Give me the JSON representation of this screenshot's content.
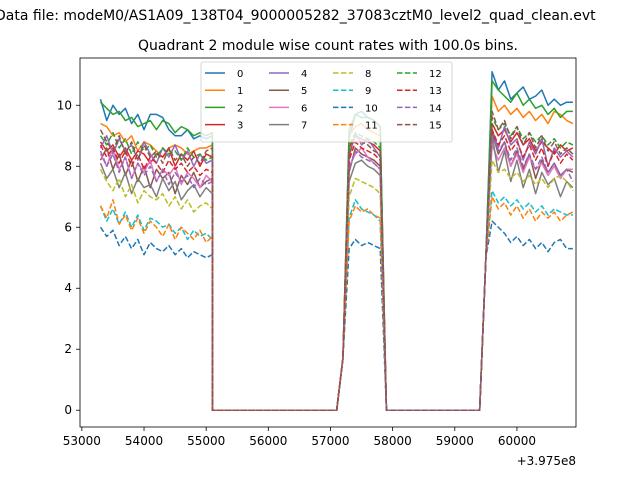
{
  "figure": {
    "suptitle": "Data file: modeM0/AS1A09_138T04_9000005282_37083cztM0_level2_quad_clean.evt"
  },
  "chart_data": {
    "type": "line",
    "title": "Quadrant 2 module wise count rates with 100.0s bins.",
    "xlabel": "",
    "ylabel": "",
    "x_offset_label": "+3.975e8",
    "xlim": [
      52970,
      60950
    ],
    "ylim": [
      -0.55,
      11.55
    ],
    "x_ticks": [
      53000,
      54000,
      55000,
      56000,
      57000,
      58000,
      59000,
      60000
    ],
    "y_ticks": [
      0,
      2,
      4,
      6,
      8,
      10
    ],
    "grid": false,
    "legend": {
      "placement": "top-center",
      "columns": 4
    },
    "series": [
      {
        "name": "0",
        "color": "#1f77b4",
        "dash": "solid",
        "start": [
          10.2,
          9.5,
          10.0,
          9.7,
          9.9,
          9.4,
          9.7,
          9.2,
          9.7,
          9.7,
          9.6,
          9.2,
          9.0,
          9.0,
          9.2,
          8.9,
          9.0,
          8.9,
          9.0
        ],
        "mid": [
          8.9,
          9.7,
          9.8,
          9.6,
          9.5,
          9.3
        ],
        "end": [
          11.1,
          10.5,
          10.8,
          10.2,
          10.4,
          10.6,
          10.2,
          10.3,
          10.5,
          10.0,
          10.2,
          10.0,
          10.1,
          10.1
        ]
      },
      {
        "name": "1",
        "color": "#ff7f0e",
        "dash": "solid",
        "start": [
          9.4,
          9.3,
          9.0,
          9.1,
          8.8,
          9.0,
          8.5,
          8.8,
          8.7,
          8.5,
          8.3,
          8.6,
          8.7,
          8.6,
          8.4,
          8.5,
          8.6,
          8.6,
          8.7
        ],
        "mid": [
          9.0,
          9.3,
          9.4,
          9.2,
          9.1,
          9.0
        ],
        "end": [
          10.3,
          9.8,
          10.0,
          9.7,
          9.9,
          9.6,
          9.8,
          9.5,
          9.7,
          9.4,
          9.8,
          9.7,
          9.5,
          9.4
        ]
      },
      {
        "name": "2",
        "color": "#2ca02c",
        "dash": "solid",
        "start": [
          10.1,
          9.9,
          9.7,
          9.8,
          9.5,
          9.6,
          9.3,
          9.4,
          9.5,
          9.2,
          9.5,
          9.4,
          9.1,
          9.3,
          9.2,
          9.0,
          9.1,
          9.0,
          9.1
        ],
        "mid": [
          9.2,
          9.7,
          9.6,
          9.6,
          9.5,
          9.3
        ],
        "end": [
          10.8,
          10.5,
          10.3,
          10.1,
          10.4,
          10.0,
          10.2,
          9.9,
          10.0,
          9.7,
          9.9,
          9.6,
          9.8,
          9.8
        ]
      },
      {
        "name": "3",
        "color": "#d62728",
        "dash": "solid",
        "start": [
          8.8,
          8.5,
          8.7,
          8.3,
          8.6,
          8.2,
          8.5,
          8.4,
          8.1,
          8.4,
          8.3,
          8.6,
          8.0,
          8.4,
          8.2,
          8.5,
          8.0,
          8.4,
          8.3
        ],
        "mid": [
          8.6,
          9.0,
          8.9,
          8.8,
          8.7,
          8.5
        ],
        "end": [
          9.4,
          9.0,
          9.2,
          8.8,
          9.1,
          8.7,
          8.9,
          8.5,
          8.8,
          8.6,
          8.4,
          8.7,
          8.5,
          8.6
        ]
      },
      {
        "name": "4",
        "color": "#9467bd",
        "dash": "solid",
        "start": [
          8.6,
          9.0,
          8.4,
          8.9,
          8.5,
          8.7,
          8.2,
          8.8,
          8.4,
          8.1,
          8.6,
          8.3,
          8.7,
          8.2,
          8.5,
          8.0,
          8.4,
          8.1,
          8.2
        ],
        "mid": [
          8.3,
          9.1,
          8.7,
          8.9,
          8.6,
          8.3
        ],
        "end": [
          9.2,
          8.6,
          9.3,
          8.7,
          8.9,
          8.2,
          8.8,
          8.4,
          8.9,
          8.0,
          8.6,
          8.3,
          8.5,
          8.3
        ]
      },
      {
        "name": "5",
        "color": "#8c564b",
        "dash": "solid",
        "start": [
          8.2,
          8.6,
          7.9,
          8.4,
          7.7,
          8.2,
          7.5,
          8.0,
          7.3,
          7.9,
          7.6,
          7.8,
          7.1,
          7.7,
          7.4,
          7.8,
          7.3,
          7.5,
          7.6
        ],
        "mid": [
          7.8,
          8.6,
          8.4,
          8.3,
          8.2,
          8.0
        ],
        "end": [
          9.1,
          8.4,
          8.8,
          8.0,
          8.5,
          7.9,
          8.4,
          7.6,
          8.2,
          7.8,
          8.1,
          7.7,
          7.9,
          7.8
        ]
      },
      {
        "name": "6",
        "color": "#e377c2",
        "dash": "solid",
        "start": [
          8.4,
          8.0,
          8.6,
          7.9,
          8.3,
          7.6,
          8.1,
          7.8,
          8.2,
          7.5,
          7.9,
          7.7,
          8.0,
          7.4,
          7.8,
          7.6,
          7.3,
          7.7,
          7.5
        ],
        "mid": [
          8.0,
          8.4,
          8.6,
          8.3,
          8.1,
          7.9
        ],
        "end": [
          8.7,
          8.2,
          8.6,
          8.0,
          8.4,
          7.8,
          8.3,
          7.9,
          8.1,
          7.7,
          8.0,
          7.6,
          7.9,
          7.9
        ]
      },
      {
        "name": "7",
        "color": "#7f7f7f",
        "dash": "solid",
        "start": [
          8.1,
          7.6,
          7.9,
          7.3,
          7.8,
          7.1,
          7.6,
          7.3,
          7.4,
          7.0,
          7.6,
          7.2,
          7.5,
          6.9,
          7.2,
          7.4,
          7.0,
          7.3,
          7.1
        ],
        "mid": [
          7.5,
          8.1,
          8.2,
          8.0,
          7.9,
          7.7
        ],
        "end": [
          9.0,
          7.8,
          8.5,
          7.5,
          8.2,
          7.3,
          7.9,
          7.1,
          7.8,
          7.4,
          7.6,
          7.0,
          7.5,
          7.3
        ]
      },
      {
        "name": "8",
        "color": "#bcbd22",
        "dash": "dashed",
        "start": [
          7.9,
          7.5,
          7.2,
          7.6,
          7.0,
          7.4,
          6.8,
          7.2,
          7.0,
          6.9,
          7.1,
          6.7,
          7.0,
          6.6,
          6.9,
          6.5,
          6.7,
          6.8,
          6.6
        ],
        "mid": [
          7.0,
          7.6,
          7.5,
          7.4,
          7.3,
          7.1
        ],
        "end": [
          8.2,
          7.8,
          7.9,
          7.6,
          7.8,
          7.5,
          7.7,
          7.4,
          7.6,
          7.3,
          7.6,
          7.7,
          7.5,
          7.2
        ]
      },
      {
        "name": "9",
        "color": "#17becf",
        "dash": "dashed",
        "start": [
          6.7,
          6.2,
          6.6,
          6.1,
          6.5,
          6.0,
          6.4,
          5.9,
          6.3,
          6.2,
          6.0,
          6.1,
          5.8,
          6.0,
          5.6,
          5.9,
          5.7,
          5.8,
          5.6
        ],
        "mid": [
          6.3,
          6.9,
          6.6,
          6.5,
          6.4,
          6.2
        ],
        "end": [
          7.2,
          6.8,
          7.0,
          6.7,
          6.9,
          6.6,
          6.8,
          6.5,
          6.7,
          6.4,
          6.6,
          6.5,
          6.4,
          6.4
        ]
      },
      {
        "name": "10",
        "color": "#1f77b4",
        "dash": "dashed",
        "start": [
          6.0,
          5.7,
          5.9,
          5.4,
          5.7,
          5.3,
          5.6,
          5.1,
          5.5,
          5.3,
          5.2,
          5.4,
          5.1,
          5.3,
          5.0,
          5.2,
          5.1,
          5.0,
          5.1
        ],
        "mid": [
          5.3,
          5.6,
          5.4,
          5.5,
          5.4,
          5.3
        ],
        "end": [
          6.2,
          6.0,
          5.8,
          5.5,
          5.7,
          5.4,
          5.6,
          5.3,
          5.5,
          5.2,
          5.5,
          5.6,
          5.3,
          5.3
        ]
      },
      {
        "name": "11",
        "color": "#ff7f0e",
        "dash": "dashed",
        "start": [
          6.7,
          6.3,
          6.9,
          6.1,
          6.4,
          5.9,
          6.3,
          5.8,
          6.2,
          6.0,
          5.7,
          6.1,
          5.6,
          6.0,
          5.8,
          5.6,
          5.9,
          5.5,
          5.7
        ],
        "mid": [
          6.2,
          6.7,
          6.5,
          6.6,
          6.4,
          6.3
        ],
        "end": [
          7.0,
          6.6,
          6.8,
          6.4,
          6.7,
          6.3,
          6.6,
          6.2,
          6.5,
          6.3,
          6.5,
          6.2,
          6.4,
          6.5
        ]
      },
      {
        "name": "12",
        "color": "#2ca02c",
        "dash": "dashed",
        "start": [
          9.0,
          8.7,
          9.1,
          8.6,
          8.9,
          8.4,
          8.8,
          8.5,
          8.7,
          8.3,
          8.6,
          8.4,
          8.5,
          8.2,
          8.6,
          8.3,
          8.4,
          8.2,
          8.3
        ],
        "mid": [
          8.7,
          9.1,
          9.0,
          8.9,
          8.8,
          8.6
        ],
        "end": [
          9.6,
          9.2,
          9.4,
          9.0,
          9.3,
          8.9,
          9.1,
          8.8,
          9.0,
          8.7,
          8.9,
          8.6,
          8.8,
          8.7
        ]
      },
      {
        "name": "13",
        "color": "#d62728",
        "dash": "dashed",
        "start": [
          8.7,
          8.3,
          8.6,
          8.1,
          8.5,
          8.0,
          8.4,
          7.9,
          8.3,
          8.1,
          7.8,
          8.2,
          7.9,
          8.1,
          7.8,
          8.0,
          7.7,
          7.9,
          7.8
        ],
        "mid": [
          8.2,
          8.8,
          8.6,
          8.5,
          8.4,
          8.2
        ],
        "end": [
          9.2,
          8.7,
          9.0,
          8.5,
          8.8,
          8.3,
          8.7,
          8.2,
          8.6,
          8.0,
          8.5,
          8.1,
          8.4,
          8.2
        ]
      },
      {
        "name": "14",
        "color": "#9467bd",
        "dash": "dashed",
        "start": [
          8.5,
          8.0,
          8.4,
          7.8,
          8.3,
          7.6,
          8.1,
          7.7,
          8.0,
          7.5,
          7.9,
          7.4,
          7.8,
          7.5,
          7.7,
          7.3,
          7.6,
          7.4,
          7.5
        ],
        "mid": [
          7.9,
          8.5,
          8.3,
          8.2,
          8.1,
          7.9
        ],
        "end": [
          9.0,
          8.5,
          8.8,
          8.2,
          8.6,
          8.0,
          8.4,
          7.9,
          8.3,
          7.8,
          8.1,
          7.7,
          7.9,
          7.5
        ]
      },
      {
        "name": "15",
        "color": "#8c564b",
        "dash": "dashed",
        "start": [
          9.2,
          8.8,
          8.5,
          9.0,
          8.4,
          8.8,
          8.2,
          8.7,
          8.3,
          8.5,
          8.1,
          8.6,
          8.2,
          8.4,
          8.0,
          8.3,
          8.1,
          8.5,
          8.6
        ],
        "mid": [
          8.4,
          9.0,
          8.8,
          8.7,
          8.5,
          8.4
        ],
        "end": [
          9.8,
          9.2,
          9.5,
          8.9,
          9.3,
          8.7,
          9.1,
          8.6,
          9.0,
          8.5,
          8.8,
          8.4,
          8.6,
          8.4
        ]
      }
    ],
    "segments": {
      "start_x": 53300,
      "step": 100,
      "drop_end_x": 55100,
      "gap1_end_x": 57100,
      "mid_rise_x": 57200,
      "mid_start_x": 57300,
      "mid_end_x": 57800,
      "drop_mid_x": 57900,
      "gap2_end_x": 59400,
      "end_rise_x": 59500,
      "end_start_x": 59600,
      "zero": 0
    }
  }
}
